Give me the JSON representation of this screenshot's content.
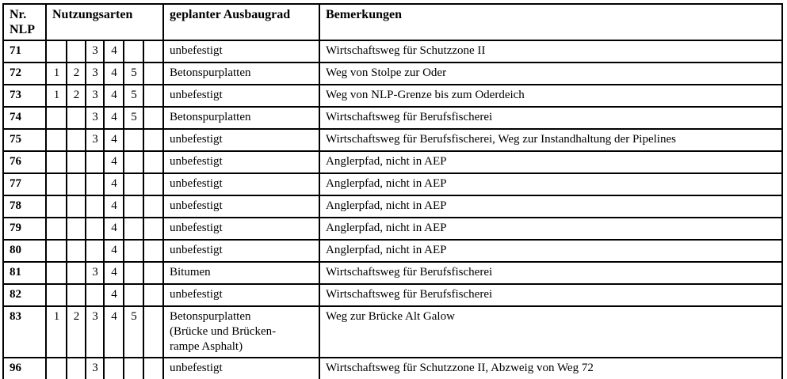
{
  "table": {
    "headers": {
      "nr_nlp": [
        "Nr.",
        "NLP"
      ],
      "nutzungsarten": "Nutzungsarten",
      "ausbaugrad": "geplanter Ausbaugrad",
      "bemerkungen": "Bemerkungen"
    },
    "usage_subcolumn_count": 6,
    "rows": [
      {
        "nlp": "71",
        "nutzungsarten": [
          "",
          "",
          "3",
          "4",
          "",
          ""
        ],
        "ausbaugrad": [
          "unbefestigt"
        ],
        "bemerkung": "Wirtschaftsweg für Schutzzone II"
      },
      {
        "nlp": "72",
        "nutzungsarten": [
          "1",
          "2",
          "3",
          "4",
          "5",
          ""
        ],
        "ausbaugrad": [
          "Betonspurplatten"
        ],
        "bemerkung": "Weg von Stolpe zur Oder"
      },
      {
        "nlp": "73",
        "nutzungsarten": [
          "1",
          "2",
          "3",
          "4",
          "5",
          ""
        ],
        "ausbaugrad": [
          "unbefestigt"
        ],
        "bemerkung": "Weg von NLP-Grenze bis zum Oderdeich"
      },
      {
        "nlp": "74",
        "nutzungsarten": [
          "",
          "",
          "3",
          "4",
          "5",
          ""
        ],
        "ausbaugrad": [
          "Betonspurplatten"
        ],
        "bemerkung": "Wirtschaftsweg für Berufsfischerei"
      },
      {
        "nlp": "75",
        "nutzungsarten": [
          "",
          "",
          "3",
          "4",
          "",
          ""
        ],
        "ausbaugrad": [
          "unbefestigt"
        ],
        "bemerkung": "Wirtschaftsweg für Berufsfischerei, Weg zur Instandhaltung der Pipelines"
      },
      {
        "nlp": "76",
        "nutzungsarten": [
          "",
          "",
          "",
          "4",
          "",
          ""
        ],
        "ausbaugrad": [
          "unbefestigt"
        ],
        "bemerkung": "Anglerpfad, nicht in AEP"
      },
      {
        "nlp": "77",
        "nutzungsarten": [
          "",
          "",
          "",
          "4",
          "",
          ""
        ],
        "ausbaugrad": [
          "unbefestigt"
        ],
        "bemerkung": "Anglerpfad, nicht in AEP"
      },
      {
        "nlp": "78",
        "nutzungsarten": [
          "",
          "",
          "",
          "4",
          "",
          ""
        ],
        "ausbaugrad": [
          "unbefestigt"
        ],
        "bemerkung": "Anglerpfad, nicht in AEP"
      },
      {
        "nlp": "79",
        "nutzungsarten": [
          "",
          "",
          "",
          "4",
          "",
          ""
        ],
        "ausbaugrad": [
          "unbefestigt"
        ],
        "bemerkung": "Anglerpfad, nicht in AEP"
      },
      {
        "nlp": "80",
        "nutzungsarten": [
          "",
          "",
          "",
          "4",
          "",
          ""
        ],
        "ausbaugrad": [
          "unbefestigt"
        ],
        "bemerkung": "Anglerpfad, nicht in AEP"
      },
      {
        "nlp": "81",
        "nutzungsarten": [
          "",
          "",
          "3",
          "4",
          "",
          ""
        ],
        "ausbaugrad": [
          "Bitumen"
        ],
        "bemerkung": "Wirtschaftsweg für Berufsfischerei"
      },
      {
        "nlp": "82",
        "nutzungsarten": [
          "",
          "",
          "",
          "4",
          "",
          ""
        ],
        "ausbaugrad": [
          "unbefestigt"
        ],
        "bemerkung": "Wirtschaftsweg für Berufsfischerei"
      },
      {
        "nlp": "83",
        "nutzungsarten": [
          "1",
          "2",
          "3",
          "4",
          "5",
          ""
        ],
        "ausbaugrad": [
          "Betonspurplatten",
          "(Brücke und Brücken-",
          "rampe Asphalt)"
        ],
        "bemerkung": "Weg zur Brücke Alt Galow"
      },
      {
        "nlp": "96",
        "nutzungsarten": [
          "",
          "",
          "3",
          "",
          "",
          ""
        ],
        "ausbaugrad": [
          "unbefestigt"
        ],
        "bemerkung": "Wirtschaftsweg für Schutzzone II, Abzweig von Weg 72"
      }
    ]
  }
}
